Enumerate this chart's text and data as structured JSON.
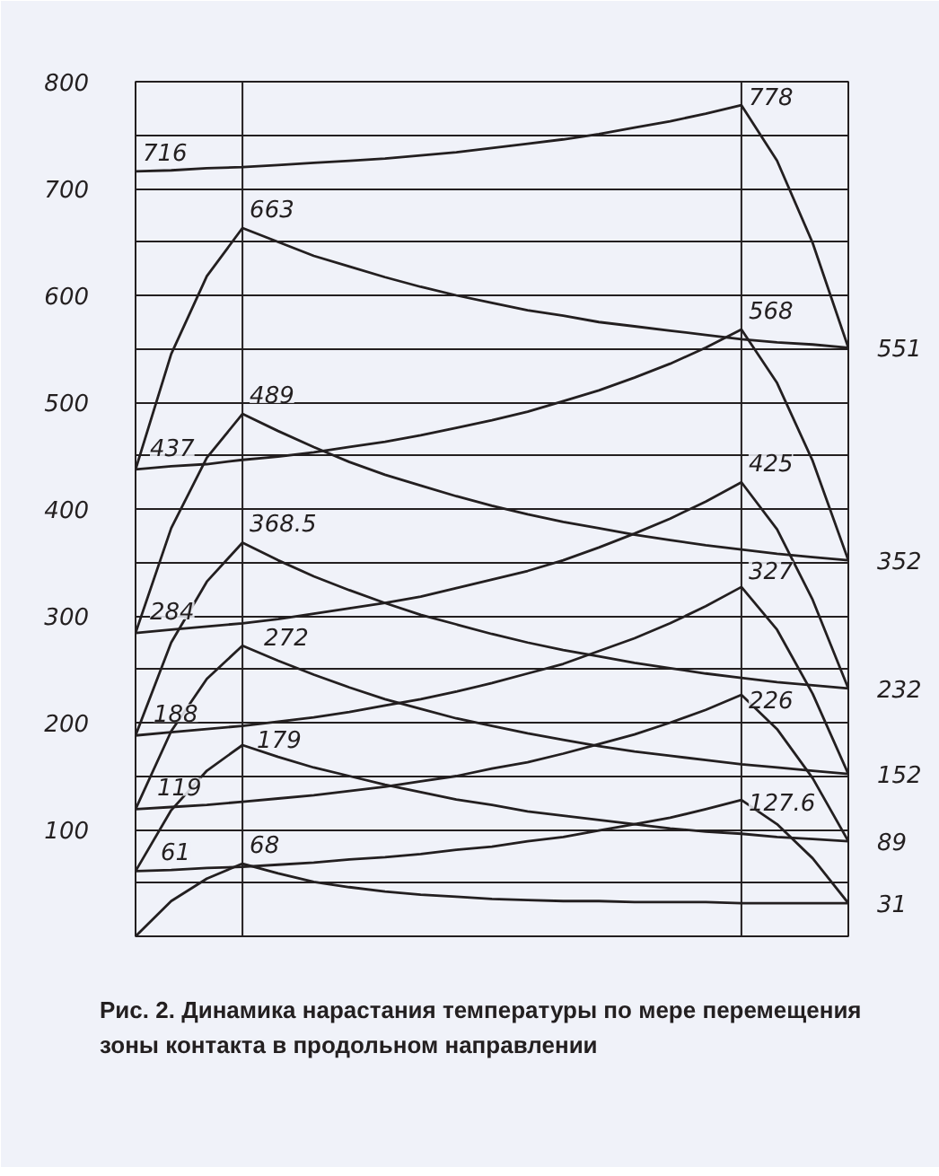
{
  "chart_data": {
    "type": "line",
    "title": "Рис. 2. Динамика нарастания температуры по мере перемещения зоны контакта в продольном направлении",
    "categories": [
      null,
      null,
      null,
      null,
      null,
      null,
      null,
      null,
      null,
      null,
      null,
      null,
      null,
      null,
      null,
      null,
      null,
      null,
      null,
      null,
      null
    ],
    "ylim": [
      0,
      800
    ],
    "yticks": [
      {
        "value": 0,
        "label": null
      },
      {
        "value": 50,
        "label": null
      },
      100,
      {
        "value": 150,
        "label": null
      },
      200,
      {
        "value": 250,
        "label": null
      },
      300,
      {
        "value": 350,
        "label": null
      },
      400,
      {
        "value": 450,
        "label": null
      },
      500,
      {
        "value": 550,
        "label": null
      },
      600,
      {
        "value": 650,
        "label": null
      },
      700,
      {
        "value": 750,
        "label": null
      },
      800
    ],
    "grid": "y",
    "tick_labels": "y",
    "series": [
      {
        "color": "#231f20",
        "values": [
          716,
          717,
          719,
          720,
          722,
          724,
          726,
          728,
          731,
          734,
          738,
          742,
          746,
          751,
          757,
          763,
          770,
          778,
          726,
          649,
          551
        ],
        "value_labels": [
          "716",
          null,
          null,
          null,
          null,
          null,
          null,
          null,
          null,
          null,
          null,
          null,
          null,
          null,
          null,
          null,
          null,
          "778",
          null,
          null,
          "551"
        ]
      },
      {
        "color": "#231f20",
        "values": [
          437,
          545,
          618,
          663,
          650,
          637,
          627,
          617,
          608,
          600,
          593,
          586,
          581,
          575,
          571,
          567,
          563,
          559,
          556,
          554,
          551
        ],
        "value_labels": [
          null,
          null,
          null,
          "663",
          null,
          null,
          null,
          null,
          null,
          null,
          null,
          null,
          null,
          null,
          null,
          null,
          null,
          null,
          null,
          null,
          null
        ]
      },
      {
        "color": "#231f20",
        "values": [
          437,
          440,
          442,
          446,
          449,
          453,
          458,
          463,
          469,
          476,
          483,
          491,
          501,
          511,
          523,
          536,
          551,
          568,
          518,
          445,
          352
        ],
        "value_labels": [
          "437",
          null,
          null,
          null,
          null,
          null,
          null,
          null,
          null,
          null,
          null,
          null,
          null,
          null,
          null,
          null,
          null,
          "568",
          null,
          null,
          "352"
        ]
      },
      {
        "color": "#231f20",
        "values": [
          284,
          382,
          448,
          489,
          473,
          458,
          444,
          432,
          422,
          412,
          403,
          395,
          388,
          382,
          376,
          371,
          366,
          362,
          358,
          355,
          352
        ],
        "value_labels": [
          null,
          null,
          null,
          "489",
          null,
          null,
          null,
          null,
          null,
          null,
          null,
          null,
          null,
          null,
          null,
          null,
          null,
          null,
          null,
          null,
          null
        ]
      },
      {
        "color": "#231f20",
        "values": [
          284,
          287,
          290,
          293,
          297,
          302,
          307,
          312,
          318,
          326,
          334,
          342,
          352,
          364,
          377,
          391,
          407,
          425,
          381,
          315,
          232
        ],
        "value_labels": [
          "284",
          null,
          null,
          null,
          null,
          null,
          null,
          null,
          null,
          null,
          null,
          null,
          null,
          null,
          null,
          null,
          null,
          "425",
          null,
          null,
          "232"
        ]
      },
      {
        "color": "#231f20",
        "values": [
          188,
          275,
          332,
          368.5,
          352,
          337,
          324,
          312,
          301,
          292,
          283,
          275,
          268,
          262,
          256,
          251,
          246,
          242,
          238,
          235,
          232
        ],
        "value_labels": [
          null,
          null,
          null,
          "368.5",
          null,
          null,
          null,
          null,
          null,
          null,
          null,
          null,
          null,
          null,
          null,
          null,
          null,
          null,
          null,
          null,
          null
        ]
      },
      {
        "color": "#231f20",
        "values": [
          188,
          191,
          194,
          197,
          201,
          205,
          210,
          216,
          222,
          229,
          237,
          246,
          255,
          267,
          279,
          293,
          309,
          327,
          287,
          227,
          152
        ],
        "value_labels": [
          "188",
          null,
          null,
          null,
          null,
          null,
          null,
          null,
          null,
          null,
          null,
          null,
          null,
          null,
          null,
          null,
          null,
          "327",
          null,
          null,
          "152"
        ]
      },
      {
        "color": "#231f20",
        "values": [
          119,
          192,
          241,
          272,
          258,
          245,
          233,
          222,
          213,
          204,
          197,
          190,
          184,
          178,
          173,
          169,
          165,
          161,
          158,
          155,
          152
        ],
        "value_labels": [
          null,
          null,
          null,
          "272",
          null,
          null,
          null,
          null,
          null,
          null,
          null,
          null,
          null,
          null,
          null,
          null,
          null,
          null,
          null,
          null,
          null
        ]
      },
      {
        "color": "#231f20",
        "values": [
          119,
          121,
          123,
          126,
          129,
          132,
          136,
          140,
          145,
          150,
          157,
          163,
          171,
          180,
          189,
          200,
          212,
          226,
          194,
          148,
          89
        ],
        "value_labels": [
          "119",
          null,
          null,
          null,
          null,
          null,
          null,
          null,
          null,
          null,
          null,
          null,
          null,
          null,
          null,
          null,
          null,
          "226",
          null,
          null,
          "89"
        ]
      },
      {
        "color": "#231f20",
        "values": [
          61,
          118,
          155,
          179,
          168,
          158,
          150,
          142,
          135,
          128,
          123,
          117,
          113,
          109,
          105,
          101,
          98,
          96,
          93,
          91,
          89
        ],
        "value_labels": [
          null,
          null,
          null,
          "179",
          null,
          null,
          null,
          null,
          null,
          null,
          null,
          null,
          null,
          null,
          null,
          null,
          null,
          null,
          null,
          null,
          null
        ]
      },
      {
        "color": "#231f20",
        "values": [
          61,
          62,
          64,
          65,
          67,
          69,
          72,
          74,
          77,
          81,
          84,
          89,
          93,
          99,
          105,
          111,
          119,
          127.6,
          105,
          73,
          31
        ],
        "value_labels": [
          "61",
          null,
          null,
          null,
          null,
          null,
          null,
          null,
          null,
          null,
          null,
          null,
          null,
          null,
          null,
          null,
          null,
          "127.6",
          null,
          null,
          "31"
        ]
      },
      {
        "color": "#231f20",
        "values": [
          0,
          33,
          54,
          68,
          59,
          51,
          46,
          42,
          39,
          37,
          35,
          34,
          33,
          33,
          32,
          32,
          32,
          31,
          31,
          31,
          31
        ],
        "value_labels": [
          null,
          null,
          null,
          "68",
          null,
          null,
          null,
          null,
          null,
          null,
          null,
          null,
          null,
          null,
          null,
          null,
          null,
          null,
          null,
          null,
          null
        ]
      }
    ]
  }
}
